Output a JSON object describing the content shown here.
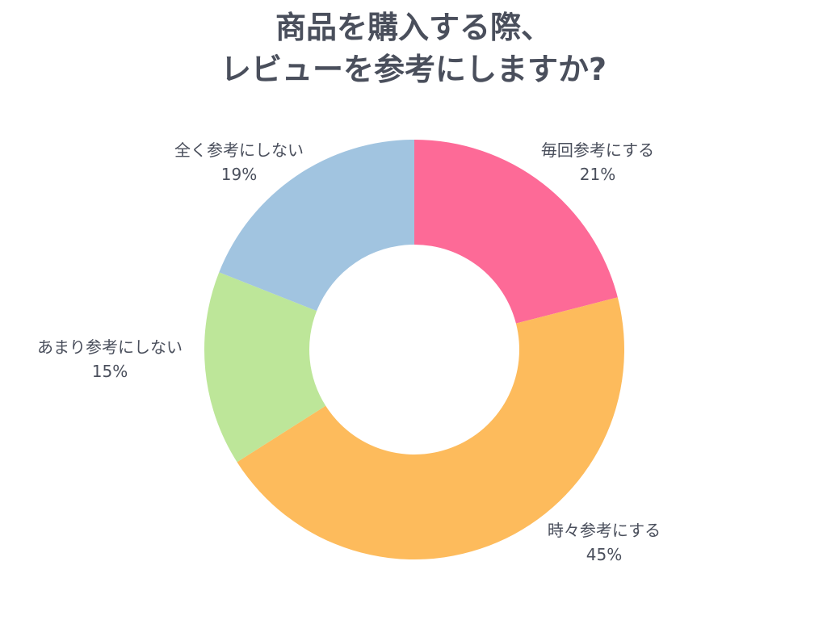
{
  "chart_data": {
    "type": "pie",
    "title_lines": [
      "商品を購入する際、",
      "レビューを参考にしますか?"
    ],
    "categories": [
      "毎回参考にする",
      "時々参考にする",
      "あまり参考にしない",
      "全く参考にしない"
    ],
    "values": [
      21,
      45,
      15,
      19
    ],
    "value_labels": [
      "21%",
      "45%",
      "15%",
      "19%"
    ],
    "colors": [
      "#fd6a97",
      "#fdbb5c",
      "#bde699",
      "#a1c4e0"
    ],
    "donut": true,
    "start_angle_deg": 0,
    "direction": "clockwise"
  }
}
